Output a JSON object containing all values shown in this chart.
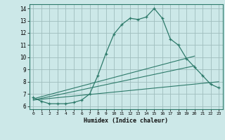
{
  "bg_color": "#cce8e8",
  "grid_color": "#9fbebe",
  "line_color": "#2d7a6a",
  "xlabel": "Humidex (Indice chaleur)",
  "xlim": [
    -0.5,
    23.5
  ],
  "ylim": [
    5.75,
    14.35
  ],
  "yticks": [
    6,
    7,
    8,
    9,
    10,
    11,
    12,
    13,
    14
  ],
  "xticks": [
    0,
    1,
    2,
    3,
    4,
    5,
    6,
    7,
    8,
    9,
    10,
    11,
    12,
    13,
    14,
    15,
    16,
    17,
    18,
    19,
    20,
    21,
    22,
    23
  ],
  "main_x": [
    0,
    1,
    2,
    3,
    4,
    5,
    6,
    7,
    8,
    9,
    10,
    11,
    12,
    13,
    14,
    15,
    16,
    17,
    18,
    19,
    20,
    21,
    22,
    23
  ],
  "main_y": [
    6.7,
    6.4,
    6.2,
    6.2,
    6.2,
    6.3,
    6.5,
    7.0,
    8.5,
    10.3,
    11.9,
    12.7,
    13.2,
    13.1,
    13.3,
    14.0,
    13.2,
    11.5,
    11.0,
    9.9,
    9.2,
    8.5,
    7.8,
    7.5
  ],
  "line1_x": [
    0,
    20
  ],
  "line1_y": [
    6.6,
    10.1
  ],
  "line2_x": [
    0,
    20
  ],
  "line2_y": [
    6.5,
    9.3
  ],
  "line3_x": [
    0,
    23
  ],
  "line3_y": [
    6.5,
    8.0
  ]
}
